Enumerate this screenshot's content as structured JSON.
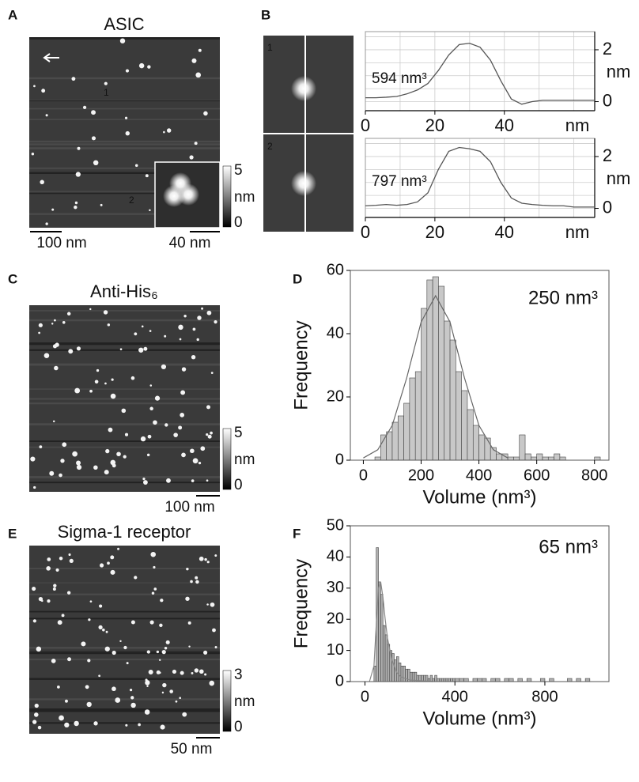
{
  "letters": [
    "A",
    "B",
    "C",
    "D",
    "E",
    "F"
  ],
  "images": [
    {
      "title": "ASIC",
      "scalebar": "100 nm",
      "inset_scalebar": "40 nm",
      "markers": [
        "1",
        "2"
      ],
      "colorbar": {
        "max": 5,
        "unit": "nm",
        "min": 0
      }
    },
    {
      "title": "Anti-His₆",
      "scalebar": "100 nm",
      "colorbar": {
        "max": 5,
        "unit": "nm",
        "min": 0
      }
    },
    {
      "title": "Sigma-1 receptor",
      "scalebar": "50 nm",
      "colorbar": {
        "max": 3,
        "unit": "nm",
        "min": 0
      }
    }
  ],
  "crops": [
    "1",
    "2"
  ],
  "chart_data": [
    {
      "type": "line",
      "annotation": "594 nm³",
      "x_label": "nm",
      "y_label": "nm",
      "color": "#555555",
      "grid": true,
      "x": [
        0,
        3,
        6,
        9,
        12,
        15,
        18,
        21,
        24,
        27,
        30,
        33,
        36,
        39,
        42,
        45,
        48,
        51,
        54,
        57,
        60,
        63,
        66
      ],
      "values": [
        0.15,
        0.15,
        0.17,
        0.2,
        0.3,
        0.45,
        0.7,
        1.2,
        1.8,
        2.2,
        2.25,
        2.1,
        1.6,
        0.8,
        0.1,
        -0.1,
        0.0,
        0.05,
        0.05,
        0.05,
        0.05,
        0.05,
        0.05
      ],
      "xlim": [
        0,
        66
      ],
      "ylim": [
        -0.35,
        2.7
      ],
      "xticks": [
        0,
        20,
        40
      ],
      "yticks": [
        0,
        2
      ],
      "minor_xticks": [
        10,
        20,
        30,
        40,
        50,
        60
      ],
      "minor_yticks": [
        0,
        0.5,
        1,
        1.5,
        2,
        2.5
      ]
    },
    {
      "type": "line",
      "annotation": "797 nm³",
      "x_label": "nm",
      "y_label": "nm",
      "color": "#555555",
      "grid": true,
      "x": [
        0,
        3,
        6,
        9,
        12,
        15,
        18,
        21,
        24,
        27,
        30,
        33,
        36,
        39,
        42,
        45,
        48,
        51,
        54,
        57,
        60,
        63,
        66
      ],
      "values": [
        0.1,
        0.12,
        0.15,
        0.12,
        0.15,
        0.25,
        0.6,
        1.5,
        2.2,
        2.35,
        2.3,
        2.2,
        1.8,
        1.0,
        0.4,
        0.2,
        0.15,
        0.12,
        0.1,
        0.1,
        0.05,
        0.05,
        0.05
      ],
      "xlim": [
        0,
        66
      ],
      "ylim": [
        -0.35,
        2.7
      ],
      "xticks": [
        0,
        20,
        40
      ],
      "yticks": [
        0,
        2
      ],
      "minor_xticks": [
        10,
        20,
        30,
        40,
        50,
        60
      ],
      "minor_yticks": [
        0,
        0.5,
        1,
        1.5,
        2,
        2.5
      ]
    },
    {
      "type": "histogram",
      "annotation": "250 nm³",
      "x_label": "Volume (nm³)",
      "y_label": "Frequency",
      "color": "#c8c8c8",
      "fit_color": "#666666",
      "bins": [
        40,
        60,
        80,
        100,
        120,
        140,
        160,
        180,
        200,
        220,
        240,
        260,
        280,
        300,
        320,
        340,
        360,
        380,
        400,
        420,
        440,
        460,
        480,
        500,
        520,
        540,
        560,
        580,
        600,
        620,
        640,
        660,
        680,
        700,
        720,
        740,
        760,
        780,
        800,
        820
      ],
      "values": [
        1,
        8,
        9,
        12,
        14,
        18,
        26,
        28,
        48,
        57,
        58,
        55,
        44,
        38,
        28,
        22,
        16,
        11,
        8,
        7,
        4,
        2,
        2,
        1,
        1,
        8,
        2,
        1,
        2,
        1,
        1,
        2,
        1,
        0,
        0,
        0,
        0,
        0,
        1
      ],
      "fit": {
        "x": [
          0,
          50,
          100,
          150,
          200,
          250,
          300,
          350,
          400,
          450,
          500
        ],
        "y": [
          0.7,
          3.3,
          11,
          26,
          43.7,
          52,
          43.7,
          26,
          11,
          3.3,
          0.7
        ]
      },
      "xlim": [
        -45,
        850
      ],
      "ylim": [
        0,
        60
      ],
      "xticks": [
        0,
        200,
        400,
        600,
        800
      ],
      "yticks": [
        0,
        20,
        40,
        60
      ]
    },
    {
      "type": "histogram",
      "annotation": "65 nm³",
      "x_label": "Volume (nm³)",
      "y_label": "Frequency",
      "color": "#b0b0b0",
      "fit_color": "#888888",
      "bins": [
        40,
        50,
        60,
        70,
        80,
        90,
        100,
        110,
        120,
        130,
        140,
        150,
        160,
        170,
        180,
        190,
        200,
        210,
        220,
        230,
        240,
        250,
        260,
        270,
        280,
        290,
        300,
        310,
        320,
        330,
        340,
        350,
        360,
        370,
        380,
        390,
        400,
        420,
        440,
        460,
        480,
        500,
        520,
        540,
        560,
        580,
        600,
        620,
        640,
        660,
        680,
        700,
        720,
        740,
        760,
        780,
        800,
        820,
        840,
        860,
        880,
        900,
        920,
        940,
        960,
        980,
        1000
      ],
      "values": [
        5,
        43,
        32,
        28,
        18,
        15,
        12,
        10,
        9,
        7,
        8,
        6,
        5,
        5,
        4,
        4,
        3,
        3,
        3,
        2,
        2,
        2,
        2,
        2,
        1,
        2,
        1,
        2,
        1,
        1,
        1,
        1,
        1,
        1,
        1,
        1,
        1,
        1,
        1,
        0,
        1,
        1,
        1,
        0,
        1,
        1,
        0,
        1,
        1,
        0,
        1,
        0,
        1,
        0,
        0,
        1,
        0,
        1,
        0,
        0,
        0,
        1,
        0,
        1,
        0,
        1
      ],
      "fit": {
        "x": [
          20,
          40,
          50,
          60,
          70,
          80,
          90,
          100,
          120,
          140,
          160,
          200,
          300
        ],
        "y": [
          0,
          5,
          18,
          30,
          32,
          27,
          20,
          14,
          7,
          3,
          1.5,
          0.5,
          0
        ]
      },
      "xlim": [
        -65,
        1085
      ],
      "ylim": [
        0,
        50
      ],
      "xticks": [
        0,
        400,
        800
      ],
      "yticks": [
        0,
        10,
        20,
        30,
        40,
        50
      ]
    }
  ]
}
